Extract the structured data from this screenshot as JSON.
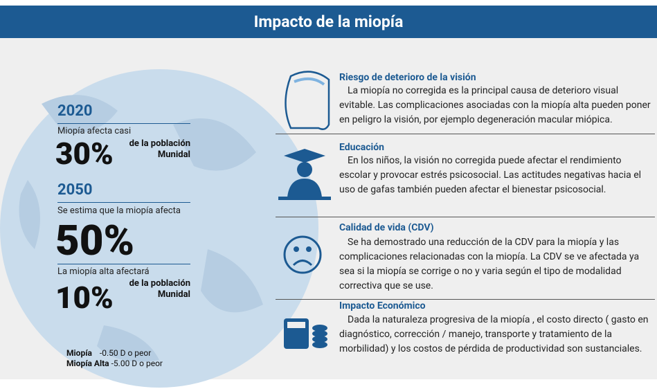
{
  "header": {
    "title": "Impacto de la miopía"
  },
  "left": {
    "blocks": [
      {
        "year": "2020",
        "caption": "Miopía afecta casi",
        "value": "30%",
        "note": [
          "de la población",
          "Munidal"
        ]
      },
      {
        "year": "2050",
        "caption": "Se estima que la miopía afecta",
        "value": "50%"
      },
      {
        "caption": "La miopía alta afectará",
        "value": "10%",
        "note": [
          "de la población",
          "Munidal"
        ]
      }
    ],
    "definitions": [
      {
        "term": "Miopía",
        "value": "-0.50 D",
        "rest": "o peor"
      },
      {
        "term": "Miopía Alta",
        "value": "-5.00 D",
        "rest": "o peor"
      }
    ]
  },
  "sections": [
    {
      "title": "Riesgo de deterioro de la visión",
      "text": "La miopía no corregida es la principal causa de deterioro visual evitable. Las complicaciones asociadas con la miopía alta pueden poner en peligro la visión, por ejemplo degeneración macular miópica."
    },
    {
      "title": "Educación",
      "text": "En los niños, la visión no corregida puede afectar el rendimiento escolar y provocar estrés psicosocial. Las actitudes negativas hacia el uso de gafas también pueden afectar el bienestar psicosocial."
    },
    {
      "title": "Calidad de vida (CDV)",
      "text": "Se ha demostrado una reducción de la CDV para la miopía y las complicaciones relacionadas con la miopía. La CDV se ve afectada ya sea si la miopía se corrige o no y varia según el tipo de modalidad correctiva que se use."
    },
    {
      "title": "Impacto Económico",
      "text": "Dada la naturaleza progresiva de la miopía , el costo directo ( gasto en diagnóstico, corrección / manejo, transporte y tratamiento de la morbilidad) y los costos de pérdida de productividad son sustanciales."
    }
  ]
}
